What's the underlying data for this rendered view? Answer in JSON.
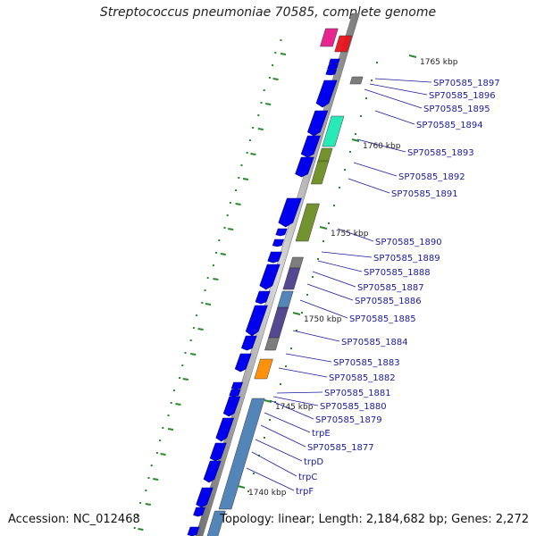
{
  "title": "Streptococcus pneumoniae 70585, complete genome",
  "accession": "Accession: NC_012468",
  "topology": "Topology: linear; Length: 2,184,682 bp; Genes: 2,272",
  "kbp_labels": [
    "1765 kbp",
    "1760 kbp",
    "1755 kbp",
    "1750 kbp",
    "1745 kbp",
    "1740 kbp"
  ],
  "gene_labels": [
    "SP70585_1897",
    "SP70585_1896",
    "SP70585_1895",
    "SP70585_1894",
    "SP70585_1893",
    "SP70585_1892",
    "SP70585_1891",
    "SP70585_1890",
    "SP70585_1889",
    "SP70585_1888",
    "SP70585_1887",
    "SP70585_1886",
    "SP70585_1885",
    "SP70585_1884",
    "SP70585_1883",
    "SP70585_1882",
    "SP70585_1881",
    "SP70585_1880",
    "SP70585_1879",
    "trpE",
    "SP70585_1877",
    "trpD",
    "trpC",
    "trpF"
  ],
  "colors": {
    "backbone": "#8a8a8a",
    "gene_arrow": "#0000ee",
    "label": "#1a1aa0",
    "tick": "#2a8a2a",
    "olive": "#6b8e23",
    "steelblue": "#4a7fb5",
    "slate": "#4b3f8c",
    "aqua": "#1de9b6",
    "orange": "#ff8c00",
    "magenta": "#e6198a",
    "red": "#e8141c",
    "gray": "#777777"
  }
}
